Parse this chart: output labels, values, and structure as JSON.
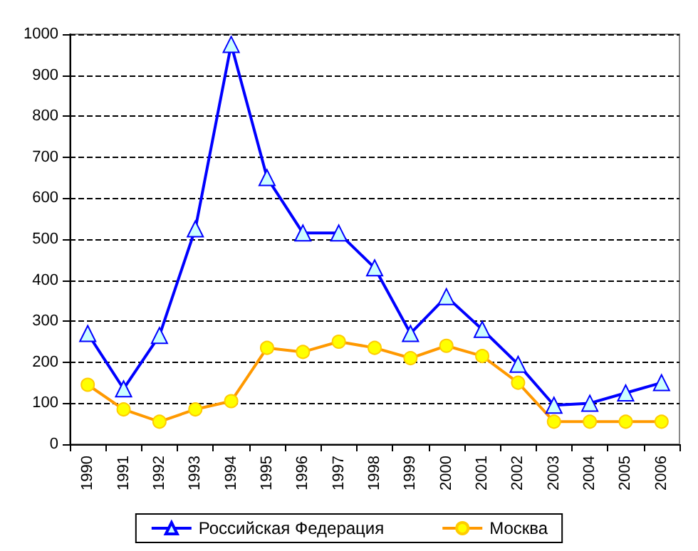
{
  "chart_data": {
    "type": "line",
    "categories": [
      "1990",
      "1991",
      "1992",
      "1993",
      "1994",
      "1995",
      "1996",
      "1997",
      "1998",
      "1999",
      "2000",
      "2001",
      "2002",
      "2003",
      "2004",
      "2005",
      "2006"
    ],
    "series": [
      {
        "name": "Российская Федерация",
        "color": "#0000ff",
        "marker": "triangle",
        "values": [
          270,
          135,
          265,
          525,
          975,
          650,
          515,
          515,
          430,
          270,
          360,
          280,
          195,
          95,
          100,
          125,
          150
        ]
      },
      {
        "name": "Москва",
        "color": "#ff9900",
        "marker": "circle",
        "values": [
          145,
          85,
          55,
          85,
          105,
          235,
          225,
          250,
          235,
          210,
          240,
          215,
          150,
          55,
          55,
          55,
          55
        ]
      }
    ],
    "ylim": [
      0,
      1000
    ],
    "yticks": [
      0,
      100,
      200,
      300,
      400,
      500,
      600,
      700,
      800,
      900,
      1000
    ],
    "grid": "y",
    "legend": "bottom",
    "line_style": "solid"
  }
}
